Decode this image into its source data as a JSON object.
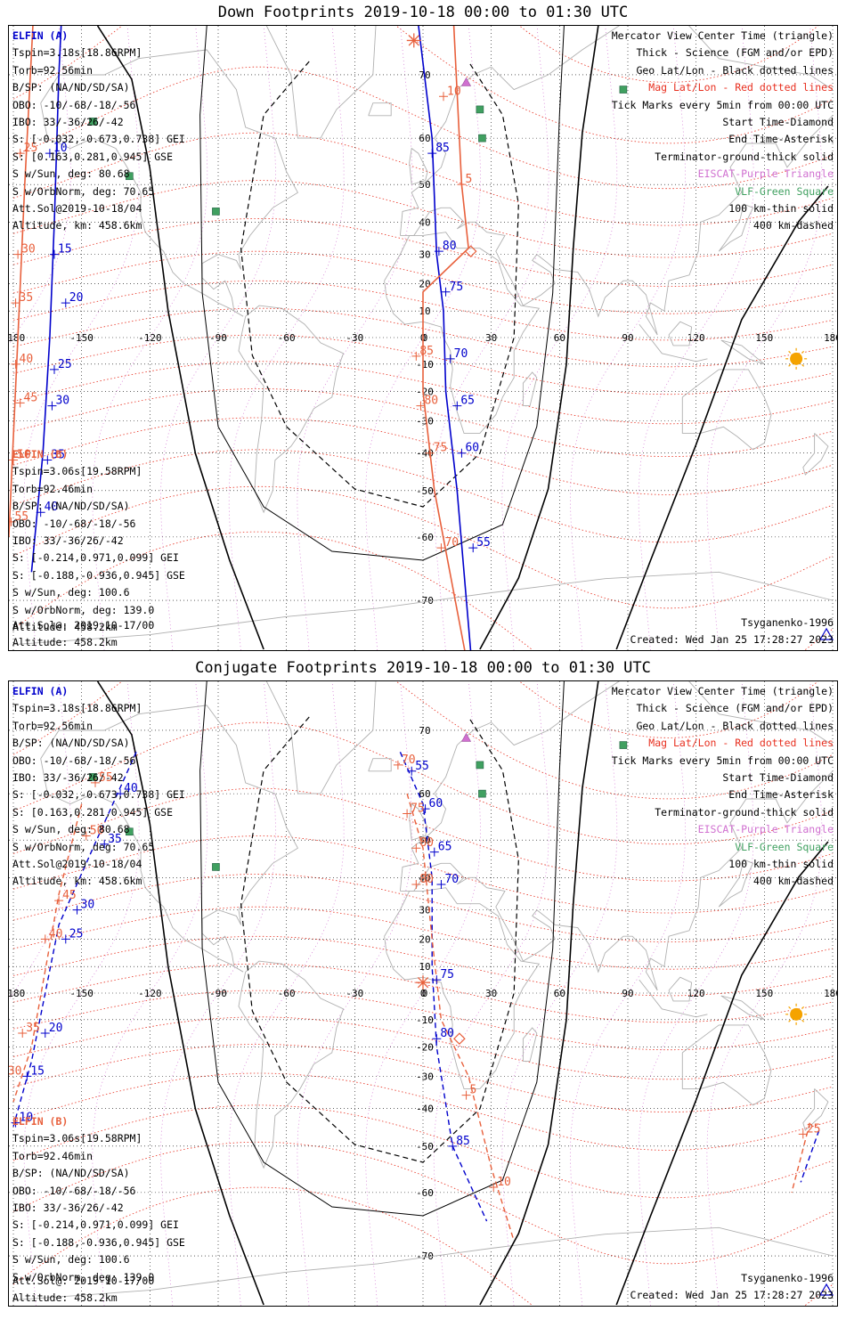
{
  "panels": [
    {
      "id": "down",
      "title": "Down Footprints 2019-10-18 00:00 to 01:30 UTC",
      "elfin_a": {
        "name": "ELFIN (A)",
        "lines": [
          "Tspin=3.18s[18.86RPM]",
          "Torb=92.56min",
          "B/SP: (NA/ND/SD/SA)",
          "OBO: -10/-68/-18/-56",
          "IBO: 33/-36/26/-42",
          "S: [-0.032,-0.673,0.738] GEI",
          "S: [0.163,0.281,0.945] GSE",
          "S w/Sun, deg: 80.68",
          "S w/OrbNorm, deg: 70.65",
          "Att.Sol@2019-10-18/04",
          "Altitude, km: 458.6km"
        ]
      },
      "elfin_b": {
        "name": "ELFIN (B)",
        "lines": [
          "Tspin=3.06s[19.58RPM]",
          "Torb=92.46min",
          "B/SP: (NA/ND/SD/SA)",
          "OBO: -10/-68/-18/-56",
          "IBO: 33/-36/26/-42",
          "S: [-0.214,0.971,0.099] GEI",
          "S: [-0.188,-0.936,0.945] GSE",
          "S w/Sun, deg: 100.6",
          "S w/OrbNorm, deg: 139.0",
          "Att.Sol@: 2019-10-17/00",
          "Altitude: 458.2km"
        ]
      },
      "track_a_labels": [
        {
          "t": "5",
          "lon": -163,
          "lat": 80
        },
        {
          "t": "10",
          "lon": -164,
          "lat": 57
        },
        {
          "t": "15",
          "lon": -162,
          "lat": 30
        },
        {
          "t": "20",
          "lon": -157,
          "lat": 13
        },
        {
          "t": "25",
          "lon": -162,
          "lat": -12
        },
        {
          "t": "30",
          "lon": -163,
          "lat": -25
        },
        {
          "t": "35",
          "lon": -165,
          "lat": -42
        },
        {
          "t": "40",
          "lon": -168,
          "lat": -55
        },
        {
          "t": "85",
          "lon": 4,
          "lat": 57
        },
        {
          "t": "80",
          "lon": 7,
          "lat": 31
        },
        {
          "t": "75",
          "lon": 10,
          "lat": 17
        },
        {
          "t": "70",
          "lon": 12,
          "lat": -8
        },
        {
          "t": "65",
          "lon": 15,
          "lat": -25
        },
        {
          "t": "60",
          "lon": 17,
          "lat": -40
        },
        {
          "t": "55",
          "lon": 22,
          "lat": -62
        }
      ],
      "track_b_labels": [
        {
          "t": "20",
          "lon": -173,
          "lat": 80
        },
        {
          "t": "25",
          "lon": -177,
          "lat": 57
        },
        {
          "t": "30",
          "lon": -178,
          "lat": 30
        },
        {
          "t": "35",
          "lon": -179,
          "lat": 13
        },
        {
          "t": "40",
          "lon": -179,
          "lat": -10
        },
        {
          "t": "45",
          "lon": -177,
          "lat": -24
        },
        {
          "t": "50",
          "lon": -180,
          "lat": -42
        },
        {
          "t": "55",
          "lon": -181,
          "lat": -57
        },
        {
          "t": "10",
          "lon": 9,
          "lat": 67
        },
        {
          "t": "5",
          "lon": 17,
          "lat": 50
        },
        {
          "t": "85",
          "lon": -3,
          "lat": -7
        },
        {
          "t": "80",
          "lon": -1,
          "lat": -25
        },
        {
          "t": "75",
          "lon": 3,
          "lat": -40
        },
        {
          "t": "70",
          "lon": 8,
          "lat": -62
        }
      ],
      "footer_left": "Att.Sol@: 2019-10-17/00",
      "footer_right_model": "Tsyganenko-1996",
      "footer_right_created": "Created: Wed Jan 25 17:28:27 2023"
    },
    {
      "id": "conj",
      "title": "Conjugate Footprints 2019-10-18 00:00 to 01:30 UTC",
      "elfin_a": {
        "name": "ELFIN (A)",
        "lines": [
          "Tspin=3.18s[18.86RPM]",
          "Torb=92.56min",
          "B/SP: (NA/ND/SD/SA)",
          "OBO: -10/-68/-18/-56",
          "IBO: 33/-36/26/-42",
          "S: [-0.032,-0.673,0.738] GEI",
          "S: [0.163,0.281,0.945] GSE",
          "S w/Sun, deg: 80.68",
          "S w/OrbNorm, deg: 70.65",
          "Att.Sol@2019-10-18/04",
          "Altitude, km: 458.6km"
        ]
      },
      "elfin_b": {
        "name": "ELFIN (B)",
        "lines": [
          "Tspin=3.06s[19.58RPM]",
          "Torb=92.46min",
          "B/SP: (NA/ND/SD/SA)",
          "OBO: -10/-68/-18/-56",
          "IBO: 33/-36/26/-42",
          "S: [-0.214,0.971,0.099] GEI",
          "S: [-0.188,-0.936,0.945] GSE",
          "S w/Sun, deg: 100.6",
          "S w/OrbNorm, deg: 139.0",
          "Att.Sol@: 2019-10-17/00",
          "Altitude: 458.2km"
        ]
      },
      "track_a_labels": [
        {
          "t": "40",
          "lon": -133,
          "lat": 60
        },
        {
          "t": "35",
          "lon": -140,
          "lat": 49
        },
        {
          "t": "30",
          "lon": -152,
          "lat": 30
        },
        {
          "t": "25",
          "lon": -157,
          "lat": 20
        },
        {
          "t": "20",
          "lon": -166,
          "lat": -15
        },
        {
          "t": "15",
          "lon": -174,
          "lat": -30
        },
        {
          "t": "10",
          "lon": -179,
          "lat": -44
        },
        {
          "t": "55",
          "lon": -5,
          "lat": 64
        },
        {
          "t": "60",
          "lon": 1,
          "lat": 57
        },
        {
          "t": "65",
          "lon": 5,
          "lat": 47
        },
        {
          "t": "70",
          "lon": 8,
          "lat": 38
        },
        {
          "t": "75",
          "lon": 6,
          "lat": 5
        },
        {
          "t": "80",
          "lon": 6,
          "lat": -17
        },
        {
          "t": "85",
          "lon": 13,
          "lat": -50
        }
      ],
      "track_b_labels": [
        {
          "t": "55",
          "lon": -144,
          "lat": 62
        },
        {
          "t": "50",
          "lon": -148,
          "lat": 51
        },
        {
          "t": "45",
          "lon": -160,
          "lat": 33
        },
        {
          "t": "40",
          "lon": -166,
          "lat": 20
        },
        {
          "t": "35",
          "lon": -176,
          "lat": -15
        },
        {
          "t": "30",
          "lon": -184,
          "lat": -30
        },
        {
          "t": "70",
          "lon": -11,
          "lat": 65
        },
        {
          "t": "75",
          "lon": -7,
          "lat": 56
        },
        {
          "t": "80",
          "lon": -3,
          "lat": 48
        },
        {
          "t": "80",
          "lon": -3,
          "lat": 38
        },
        {
          "t": "5",
          "lon": 19,
          "lat": -36
        },
        {
          "t": "10",
          "lon": 31,
          "lat": -59
        },
        {
          "t": "25",
          "lon": 167,
          "lat": -47
        }
      ],
      "footer_left": "Att.Sol@: 2019-10-17/00",
      "footer_right_model": "Tsyganenko-1996",
      "footer_right_created": "Created: Wed Jan 25 17:28:27 2023"
    }
  ],
  "legend": {
    "center": "Mercator View Center Time (triangle)",
    "thick": "Thick - Science (FGM and/or EPD)",
    "geo": "Geo Lat/Lon - Black dotted lines",
    "mag": "Mag Lat/Lon - Red dotted lines",
    "ticks": "Tick Marks every 5min from 00:00 UTC",
    "start": "Start Time-Diamond",
    "end": "End Time-Asterisk",
    "terminator": "Terminator-ground-thick solid",
    "eiscat": "EISCAT-Purple Triangle",
    "vlf": "VLF-Green Square",
    "km100": "100 km-thin solid",
    "km400": "400 km-dashed"
  },
  "axes": {
    "lon_ticks": [
      "-180",
      "-150",
      "-120",
      "-90",
      "-60",
      "-30",
      "0",
      "30",
      "60",
      "90",
      "120",
      "150",
      "180"
    ],
    "lon_values": [
      -180,
      -150,
      -120,
      -90,
      -60,
      -30,
      0,
      30,
      60,
      90,
      120,
      150,
      180
    ],
    "lat_ticks": [
      "70",
      "60",
      "50",
      "40",
      "30",
      "20",
      "10",
      "0",
      "-10",
      "-20",
      "-30",
      "-40",
      "-50",
      "-60",
      "-70"
    ],
    "lat_values": [
      70,
      60,
      50,
      40,
      30,
      20,
      10,
      0,
      -10,
      -20,
      -30,
      -40,
      -50,
      -60,
      -70
    ]
  },
  "colors": {
    "elfin_a": "#0000cc",
    "elfin_b": "#e8603c",
    "mag_grid": "#e83020",
    "geo_grid": "#000000",
    "eiscat": "#d070d0",
    "vlf": "#40a060",
    "sun": "#f5a300",
    "coast": "#b0b0b0"
  },
  "icons": [
    "sun-icon",
    "eiscat-triangle-icon",
    "vlf-square-icon",
    "start-diamond-icon",
    "end-asterisk-icon",
    "center-triangle-icon"
  ]
}
